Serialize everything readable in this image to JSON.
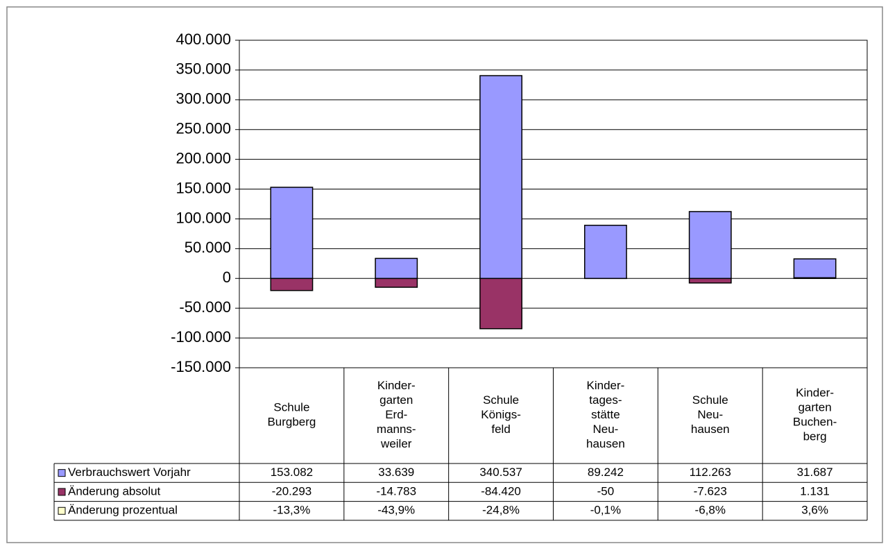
{
  "chart_data": {
    "type": "bar",
    "stacked": true,
    "categories": [
      "Schule\nBurgberg",
      "Kinder-\ngarten\nErd-\nmanns-\nweiler",
      "Schule\nKönigs-\nfeld",
      "Kinder-\ntages-\nstätte\nNeu-\nhausen",
      "Schule\nNeu-\nhausen",
      "Kinder-\ngarten\nBuchen-\nberg"
    ],
    "series": [
      {
        "name": "Änderung prozentual",
        "color": "#ffffcc",
        "values": [
          -13.3,
          -43.9,
          -24.8,
          -0.1,
          -6.8,
          3.6
        ],
        "value_labels": [
          "-13,3%",
          "-43,9%",
          "-24,8%",
          "-0,1%",
          "-6,8%",
          "3,6%"
        ]
      },
      {
        "name": "Änderung absolut",
        "color": "#993366",
        "values": [
          -20293,
          -14783,
          -84420,
          -50,
          -7623,
          1131
        ],
        "value_labels": [
          "-20.293",
          "-14.783",
          "-84.420",
          "-50",
          "-7.623",
          "1.131"
        ]
      },
      {
        "name": "Verbrauchswert Vorjahr",
        "color": "#9999ff",
        "values": [
          153082,
          33639,
          340537,
          89242,
          112263,
          31687
        ],
        "value_labels": [
          "153.082",
          "33.639",
          "340.537",
          "89.242",
          "112.263",
          "31.687"
        ]
      }
    ],
    "ylim": [
      -150000,
      400000
    ],
    "yticks": [
      {
        "value": -150000,
        "label": "-150.000"
      },
      {
        "value": -100000,
        "label": "-100.000"
      },
      {
        "value": -50000,
        "label": "-50.000"
      },
      0,
      {
        "value": 50000,
        "label": "50.000"
      },
      {
        "value": 100000,
        "label": "100.000"
      },
      {
        "value": 150000,
        "label": "150.000"
      },
      {
        "value": 200000,
        "label": "200.000"
      },
      {
        "value": 250000,
        "label": "250.000"
      },
      {
        "value": 300000,
        "label": "300.000"
      },
      {
        "value": 350000,
        "label": "350.000"
      },
      {
        "value": 400000,
        "label": "400.000"
      }
    ],
    "grid": true,
    "data_table": true
  }
}
